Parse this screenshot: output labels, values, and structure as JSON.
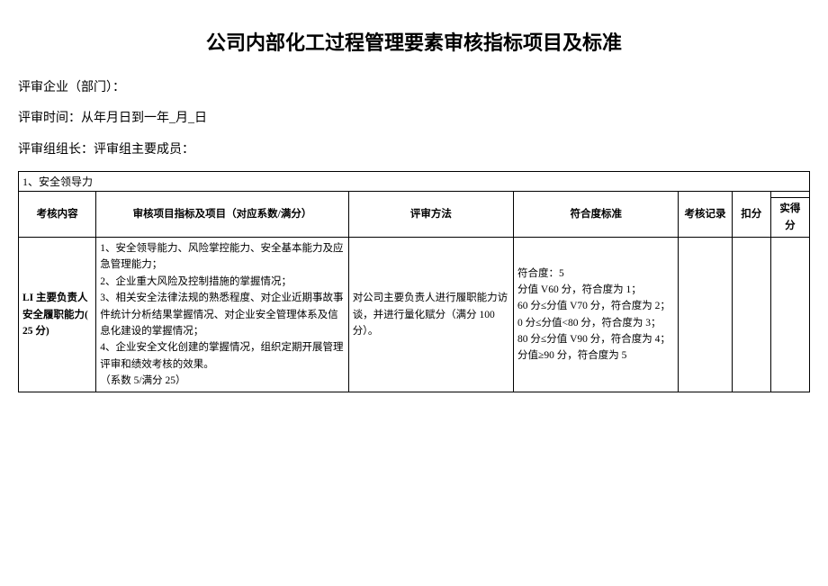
{
  "document": {
    "title": "公司内部化工过程管理要素审核指标项目及标准",
    "meta": {
      "enterprise_label": "评审企业（部门）：",
      "time_label": "评审时间：从年月日到一年_月_日",
      "team_label": "评审组组长：评审组主要成员："
    },
    "section_header": "1、安全领导力",
    "table": {
      "headers": {
        "content": "考核内容",
        "index": "审核项目指标及项目（对应系数/满分）",
        "method": "评审方法",
        "standard": "符合度标准",
        "record": "考核记录",
        "deduct": "扣分",
        "actual": "实得分"
      },
      "row1": {
        "content": "LI 主要负责人安全履职能力( 25 分)",
        "index": "1、安全领导能力、风险掌控能力、安全基本能力及应急管理能力；\n2、企业重大风险及控制措施的掌握情况；\n3、相关安全法律法规的熟悉程度、对企业近期事故事件统计分析结果掌握情况、对企业安全管理体系及信息化建设的掌握情况；\n4、企业安全文化创建的掌握情况，组织定期开展管理评审和绩效考核的效果。\n（系数 5/满分 25）",
        "method": "对公司主要负责人进行履职能力访谈，并进行量化赋分（满分 100 分）。",
        "standard": "符合度：5\n分值 V60 分，符合度为 1；\n60 分≤分值 V70 分，符合度为 2；\n0 分≤分值<80 分，符合度为 3；\n80 分≤分值 V90 分，符合度为 4；\n分值≥90 分，符合度为 5",
        "record": "",
        "deduct": "",
        "actual": ""
      }
    }
  }
}
